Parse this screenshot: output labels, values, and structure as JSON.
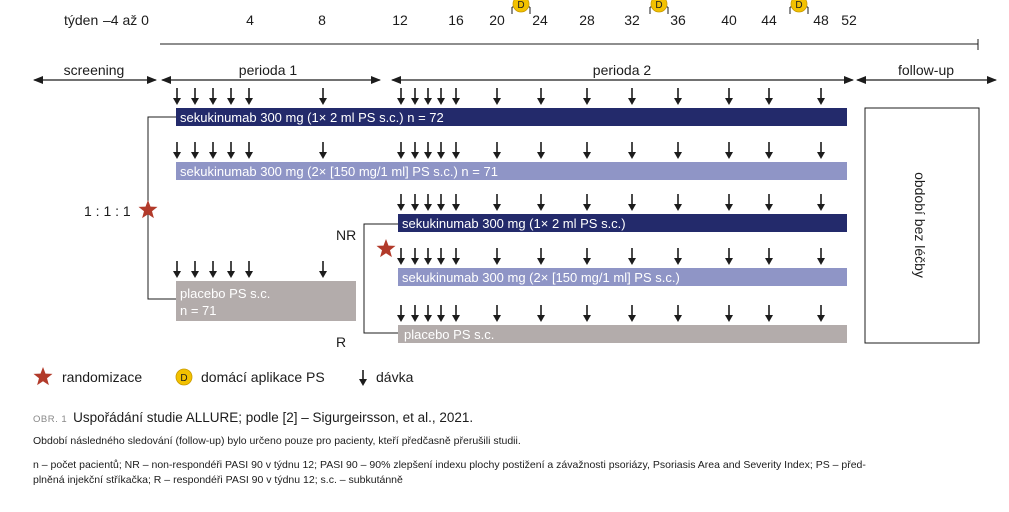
{
  "axis": {
    "week_label": "týden",
    "start_label": "–4 až 0",
    "ticks": [
      "4",
      "8",
      "12",
      "16",
      "20",
      "24",
      "28",
      "32",
      "36",
      "40",
      "44",
      "48",
      "52"
    ],
    "home_marker": "D"
  },
  "phases": {
    "screening": "screening",
    "period1": "perioda 1",
    "period2": "perioda 2",
    "followup": "follow-up"
  },
  "arms": {
    "arm1": "sekukinumab 300 mg (1× 2 ml PS s.c.) n = 72",
    "arm2": "sekukinumab 300 mg (2× [150 mg/1 ml] PS s.c.) n = 71",
    "nr1": "sekukinumab 300 mg (1× 2 ml PS s.c.)",
    "nr2": "sekukinumab 300 mg (2× [150 mg/1 ml] PS s.c.)",
    "placebo_line1": "placebo PS s.c.",
    "placebo_line2": "n = 71",
    "r_placebo": "placebo PS s.c."
  },
  "labels": {
    "ratio": "1 : 1 : 1",
    "nr": "NR",
    "r": "R",
    "no_treatment": "období bez léčby"
  },
  "legend": {
    "randomization": "randomizace",
    "home_marker": "D",
    "home_application": "domácí aplikace PS",
    "dose": "dávka"
  },
  "caption": {
    "figure_no": "OBR. 1",
    "title": "Uspořádání studie ALLURE; podle [2] – Sigurgeirsson, et al., 2021.",
    "note": "Období následného sledování (follow-up) bylo určeno pouze pro pacienty, kteří předčasně přerušili studii.",
    "abbr_line1": "n – počet pacientů; NR – non-respondéři PASI 90 v týdnu 12; PASI 90 – 90% zlepšení indexu plochy postižení a závažnosti psoriázy, Psoriasis Area and Severity Index; PS – před-",
    "abbr_line2": "plněná injekční stříkačka; R – respondéři PASI 90 v týdnu 12; s.c. – subkutánně"
  },
  "colors": {
    "dark_bar": "#232a6b",
    "light_bar": "#8f95c6",
    "placebo_bar": "#b3acab",
    "star": "#b23a2a",
    "home_circle": "#f2c100",
    "text": "#1c1c1c"
  }
}
